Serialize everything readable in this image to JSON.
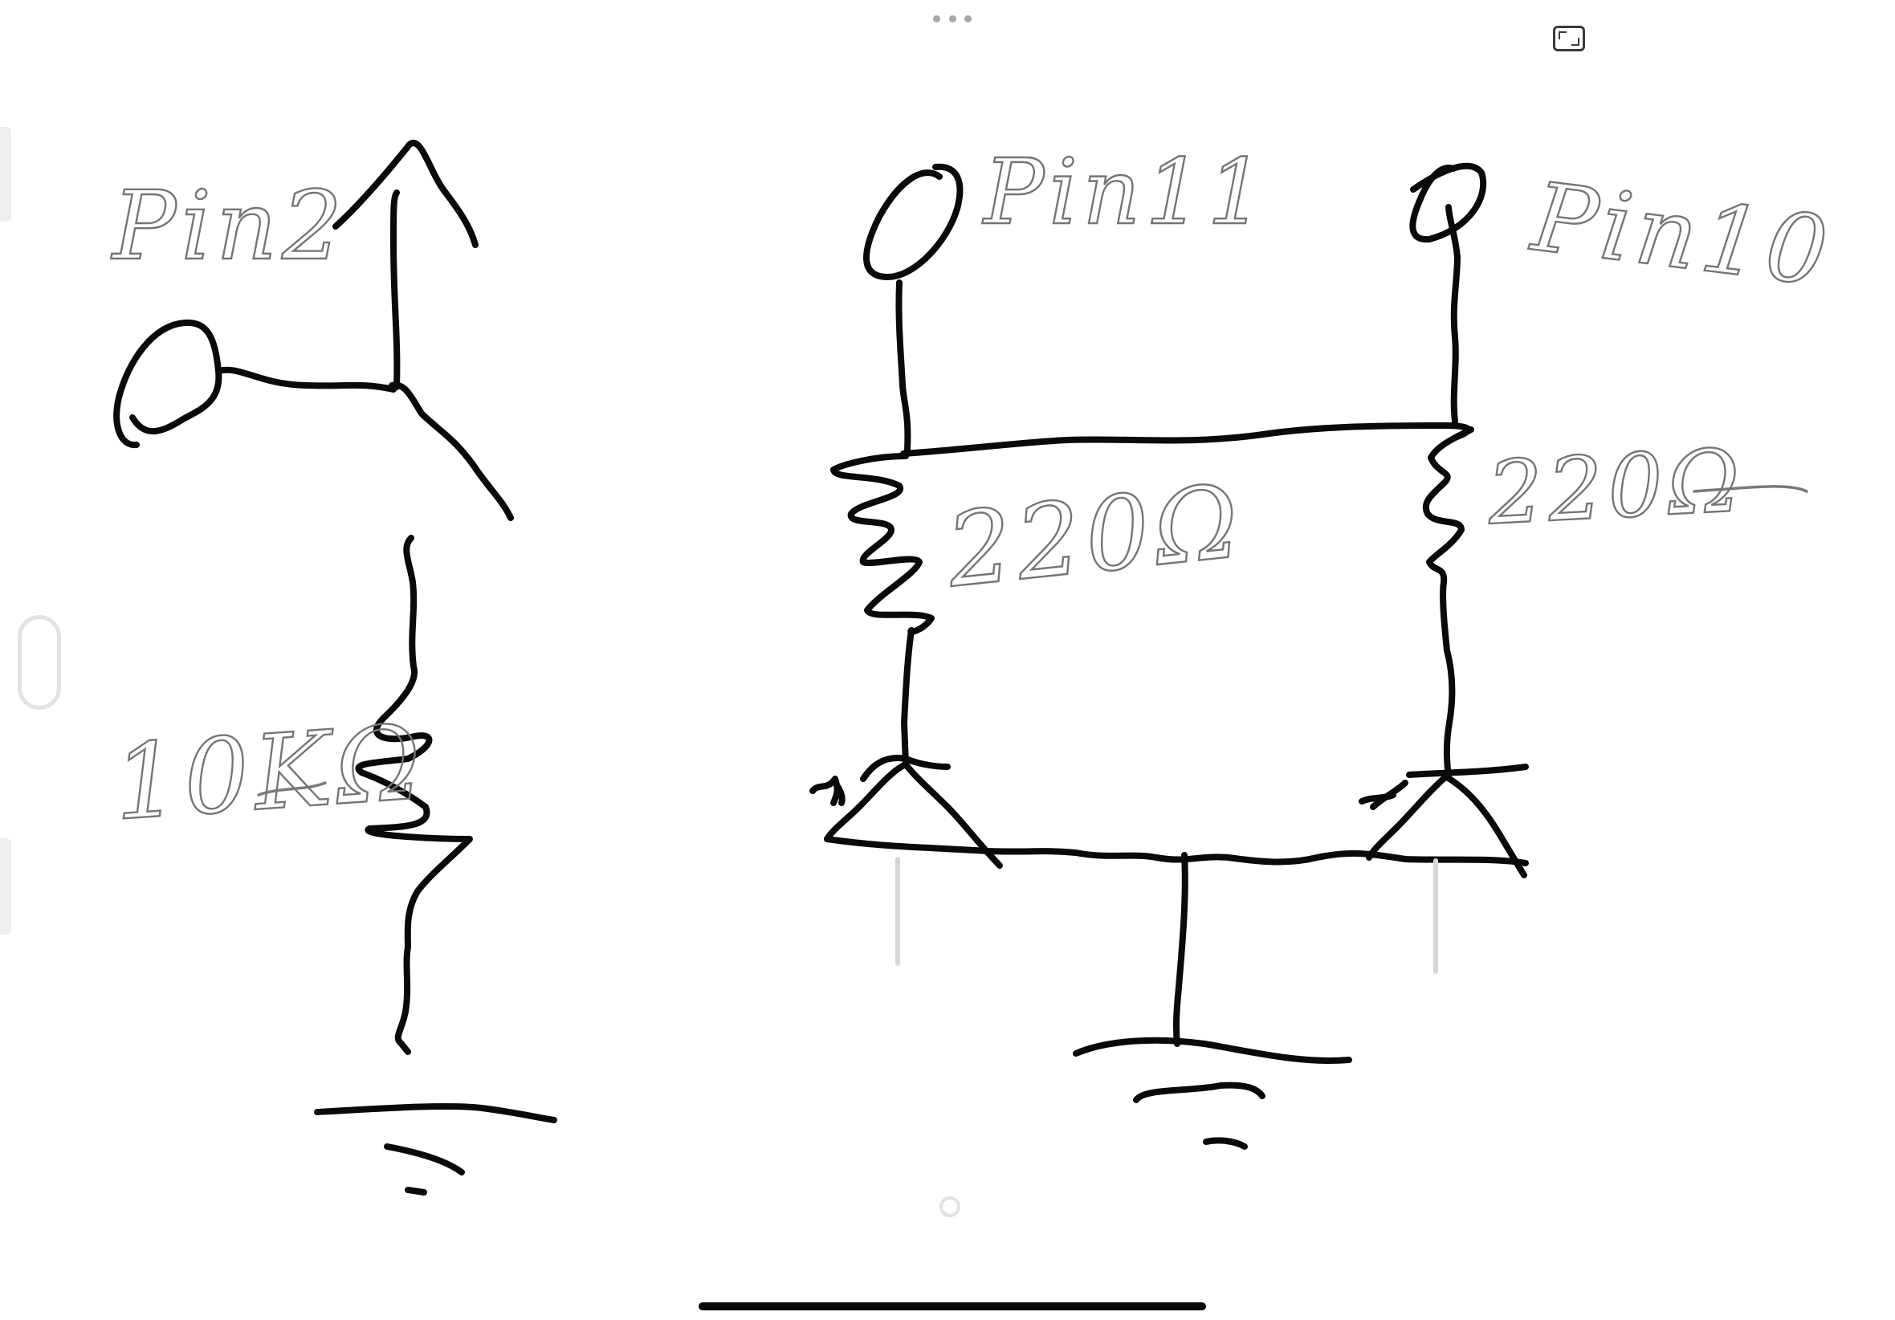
{
  "canvas": {
    "background": "#ffffff",
    "ink_color": "#0a0a0a",
    "pencil_color": "#7a7a7a"
  },
  "labels": {
    "pin2": "Pin2",
    "pin11": "Pin11",
    "pin10": "Pin10",
    "resistor_10k": "10KΩ",
    "resistor_220_left": "220Ω",
    "resistor_220_right": "220Ω"
  },
  "chrome": {
    "menu_icon": "more-dots-icon",
    "fullscreen_icon": "fullscreen-icon",
    "home_indicator": "home-indicator"
  }
}
